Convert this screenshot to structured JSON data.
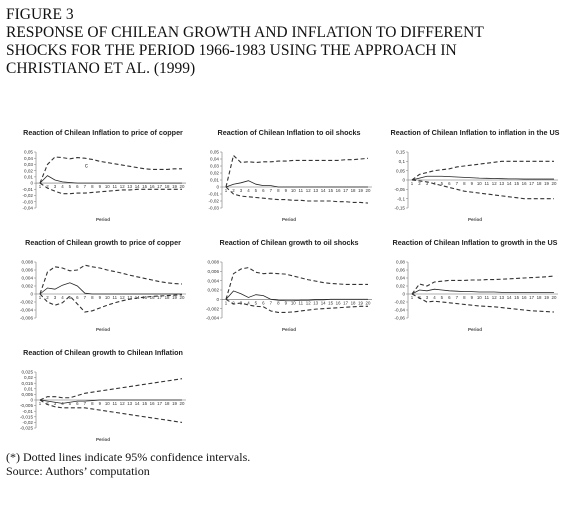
{
  "figure": {
    "title_lines": [
      "FIGURE 3",
      "RESPONSE OF CHILEAN GROWTH AND INFLATION TO DIFFERENT",
      "SHOCKS FOR THE PERIOD 1966-1983 USING THE APPROACH IN",
      "CHRISTIANO ET AL. (1999)"
    ],
    "note": "(*) Dotted lines indicate 95% confidence intervals.",
    "source": "Source: Authors’ computation"
  },
  "chart_data": [
    {
      "type": "line",
      "title": "Reaction of Chilean Inflation to price of copper",
      "xlabel": "Period",
      "x": [
        1,
        2,
        3,
        4,
        5,
        6,
        7,
        8,
        9,
        10,
        11,
        12,
        13,
        14,
        15,
        16,
        17,
        18,
        19,
        20
      ],
      "yticks": [
        "0,05",
        "0,04",
        "0,03",
        "0,02",
        "0,01",
        "0",
        "-0,01",
        "-0,02",
        "-0,03",
        "-0,04"
      ],
      "ylim": [
        -0.04,
        0.05
      ],
      "annotation": "c",
      "series": [
        {
          "role": "response",
          "values": [
            0.0,
            0.012,
            0.005,
            0.002,
            0.001,
            0.0,
            0.0,
            0.0,
            0.0,
            0.0,
            0.0,
            0.0,
            0.0,
            0.0,
            0.0,
            0.0,
            0.0,
            0.0,
            0.0,
            0.0
          ]
        },
        {
          "role": "upper",
          "values": [
            0.0,
            0.03,
            0.042,
            0.041,
            0.039,
            0.041,
            0.04,
            0.038,
            0.035,
            0.033,
            0.031,
            0.029,
            0.027,
            0.025,
            0.023,
            0.022,
            0.022,
            0.022,
            0.023,
            0.023
          ]
        },
        {
          "role": "lower",
          "values": [
            0.0,
            -0.008,
            -0.013,
            -0.017,
            -0.017,
            -0.016,
            -0.016,
            -0.015,
            -0.014,
            -0.013,
            -0.012,
            -0.011,
            -0.011,
            -0.01,
            -0.01,
            -0.01,
            -0.01,
            -0.01,
            -0.01,
            -0.01
          ]
        }
      ]
    },
    {
      "type": "line",
      "title": "Reaction of Chilean Inflation to oil shocks",
      "xlabel": "Period",
      "x": [
        1,
        2,
        3,
        4,
        5,
        6,
        7,
        8,
        9,
        10,
        11,
        12,
        13,
        14,
        15,
        16,
        17,
        18,
        19,
        20
      ],
      "yticks": [
        "0,05",
        "0,04",
        "0,03",
        "0,02",
        "0,01",
        "0",
        "-0,01",
        "-0,02",
        "-0,03"
      ],
      "ylim": [
        -0.03,
        0.05
      ],
      "series": [
        {
          "role": "response",
          "values": [
            0.0,
            0.004,
            0.006,
            0.009,
            0.004,
            0.002,
            0.002,
            0.0,
            0.0,
            0.0,
            0.0,
            0.0,
            0.0,
            0.0,
            0.0,
            0.0,
            0.0,
            0.0,
            0.0,
            0.0
          ]
        },
        {
          "role": "upper",
          "values": [
            0.0,
            0.045,
            0.035,
            0.036,
            0.035,
            0.036,
            0.036,
            0.037,
            0.037,
            0.038,
            0.038,
            0.038,
            0.038,
            0.038,
            0.038,
            0.038,
            0.039,
            0.039,
            0.04,
            0.041
          ]
        },
        {
          "role": "lower",
          "values": [
            0.0,
            -0.01,
            -0.013,
            -0.014,
            -0.015,
            -0.016,
            -0.017,
            -0.018,
            -0.018,
            -0.019,
            -0.019,
            -0.02,
            -0.02,
            -0.02,
            -0.02,
            -0.021,
            -0.021,
            -0.022,
            -0.022,
            -0.023
          ]
        }
      ]
    },
    {
      "type": "line",
      "title": "Reaction of Chilean Inflation to inflation in the US",
      "xlabel": "Period",
      "x": [
        1,
        2,
        3,
        4,
        5,
        6,
        7,
        8,
        9,
        10,
        11,
        12,
        13,
        14,
        15,
        16,
        17,
        18,
        19,
        20
      ],
      "yticks": [
        "0,15",
        "0,1",
        "0,05",
        "0",
        "-0,05",
        "-0,1",
        "-0,15"
      ],
      "ylim": [
        -0.15,
        0.15
      ],
      "series": [
        {
          "role": "response",
          "values": [
            0.0,
            0.01,
            0.02,
            0.02,
            0.02,
            0.018,
            0.016,
            0.014,
            0.012,
            0.01,
            0.009,
            0.008,
            0.007,
            0.006,
            0.006,
            0.005,
            0.005,
            0.005,
            0.005,
            0.005
          ]
        },
        {
          "role": "upper",
          "values": [
            0.0,
            0.03,
            0.04,
            0.05,
            0.055,
            0.06,
            0.07,
            0.075,
            0.08,
            0.085,
            0.09,
            0.095,
            0.1,
            0.1,
            0.1,
            0.1,
            0.1,
            0.1,
            0.1,
            0.1
          ]
        },
        {
          "role": "lower",
          "values": [
            0.0,
            -0.005,
            -0.01,
            -0.02,
            -0.03,
            -0.04,
            -0.05,
            -0.06,
            -0.065,
            -0.07,
            -0.075,
            -0.08,
            -0.085,
            -0.09,
            -0.095,
            -0.1,
            -0.1,
            -0.1,
            -0.1,
            -0.1
          ]
        }
      ]
    },
    {
      "type": "line",
      "title": "Reaction of Chilean growth to price of copper",
      "xlabel": "Period",
      "x": [
        1,
        2,
        3,
        4,
        5,
        6,
        7,
        8,
        9,
        10,
        11,
        12,
        13,
        14,
        15,
        16,
        17,
        18,
        19,
        20
      ],
      "yticks": [
        "0,008",
        "0,006",
        "0,004",
        "0,002",
        "0",
        "-0,002",
        "-0,004",
        "-0,006"
      ],
      "ylim": [
        -0.006,
        0.008
      ],
      "series": [
        {
          "role": "response",
          "values": [
            0.0,
            0.0015,
            0.0012,
            0.0022,
            0.0028,
            0.002,
            0.0002,
            0.0,
            0.0,
            0.0,
            0.0,
            0.0,
            0.0,
            0.0,
            0.0,
            0.0,
            0.0,
            0.0,
            0.0,
            0.0
          ]
        },
        {
          "role": "upper",
          "values": [
            0.0,
            0.0055,
            0.0068,
            0.0065,
            0.0058,
            0.006,
            0.0072,
            0.0068,
            0.0065,
            0.006,
            0.0056,
            0.0052,
            0.0047,
            0.0043,
            0.0039,
            0.0035,
            0.0031,
            0.0028,
            0.0026,
            0.0025
          ]
        },
        {
          "role": "lower",
          "values": [
            0.0,
            -0.002,
            -0.0028,
            -0.0022,
            -0.0005,
            -0.0025,
            -0.0045,
            -0.0042,
            -0.0035,
            -0.0028,
            -0.0022,
            -0.0017,
            -0.0013,
            -0.001,
            -0.0008,
            -0.0006,
            -0.0005,
            -0.0004,
            -0.0003,
            -0.0002
          ]
        }
      ]
    },
    {
      "type": "line",
      "title": "Reaction of Chilean growth to oil shocks",
      "xlabel": "Period",
      "x": [
        1,
        2,
        3,
        4,
        5,
        6,
        7,
        8,
        9,
        10,
        11,
        12,
        13,
        14,
        15,
        16,
        17,
        18,
        19,
        20
      ],
      "yticks": [
        "0,008",
        "0,006",
        "0,004",
        "0,002",
        "0",
        "-0,002",
        "-0,004"
      ],
      "ylim": [
        -0.004,
        0.008
      ],
      "series": [
        {
          "role": "response",
          "values": [
            0.0,
            0.0018,
            0.0012,
            0.0004,
            0.001,
            0.0008,
            0.0,
            -0.0002,
            -0.0003,
            -0.0003,
            -0.0002,
            -0.0002,
            -0.0001,
            -0.0001,
            0.0,
            0.0,
            0.0,
            0.0,
            0.0,
            0.0
          ]
        },
        {
          "role": "upper",
          "values": [
            0.0,
            0.0055,
            0.0065,
            0.0068,
            0.0058,
            0.0055,
            0.0056,
            0.0055,
            0.0054,
            0.005,
            0.0046,
            0.0042,
            0.0039,
            0.0036,
            0.0034,
            0.0033,
            0.0032,
            0.0032,
            0.0032,
            0.0032
          ]
        },
        {
          "role": "lower",
          "values": [
            0.0,
            -0.001,
            -0.0008,
            -0.0012,
            -0.0015,
            -0.0016,
            -0.0025,
            -0.0028,
            -0.0028,
            -0.0027,
            -0.0025,
            -0.0023,
            -0.0021,
            -0.002,
            -0.0019,
            -0.0018,
            -0.0017,
            -0.0016,
            -0.0015,
            -0.0015
          ]
        }
      ]
    },
    {
      "type": "line",
      "title": "Reaction of Chilean Inflation to growth in the US",
      "xlabel": "Period",
      "x": [
        1,
        2,
        3,
        4,
        5,
        6,
        7,
        8,
        9,
        10,
        11,
        12,
        13,
        14,
        15,
        16,
        17,
        18,
        19,
        20
      ],
      "yticks": [
        "0,08",
        "0,06",
        "0,04",
        "0,02",
        "0",
        "-0,02",
        "-0,04",
        "-0,06"
      ],
      "ylim": [
        -0.06,
        0.08
      ],
      "series": [
        {
          "role": "response",
          "values": [
            0.0,
            0.01,
            0.008,
            0.012,
            0.01,
            0.008,
            0.007,
            0.006,
            0.006,
            0.005,
            0.005,
            0.005,
            0.004,
            0.004,
            0.004,
            0.004,
            0.004,
            0.004,
            0.004,
            0.004
          ]
        },
        {
          "role": "upper",
          "values": [
            0.0,
            0.025,
            0.02,
            0.03,
            0.032,
            0.034,
            0.034,
            0.034,
            0.035,
            0.035,
            0.036,
            0.036,
            0.037,
            0.038,
            0.039,
            0.04,
            0.041,
            0.042,
            0.043,
            0.045
          ]
        },
        {
          "role": "lower",
          "values": [
            0.0,
            -0.01,
            -0.02,
            -0.018,
            -0.02,
            -0.022,
            -0.024,
            -0.026,
            -0.028,
            -0.03,
            -0.031,
            -0.032,
            -0.034,
            -0.036,
            -0.038,
            -0.04,
            -0.042,
            -0.043,
            -0.044,
            -0.045
          ]
        }
      ]
    },
    {
      "type": "line",
      "title": "Reaction of Chilean growth to Chilean Inflation",
      "xlabel": "Period",
      "x": [
        1,
        2,
        3,
        4,
        5,
        6,
        7,
        8,
        9,
        10,
        11,
        12,
        13,
        14,
        15,
        16,
        17,
        18,
        19,
        20
      ],
      "yticks": [
        "0,025",
        "0,02",
        "0,015",
        "0,01",
        "0,005",
        "0",
        "-0,005",
        "-0,01",
        "-0,015",
        "-0,02",
        "-0,025"
      ],
      "ylim": [
        -0.025,
        0.025
      ],
      "series": [
        {
          "role": "response",
          "values": [
            0.0,
            -0.001,
            -0.002,
            -0.003,
            -0.002,
            -0.001,
            -0.001,
            -0.0005,
            0.0,
            0.0,
            0.0,
            0.0,
            0.0,
            0.0,
            0.0,
            0.0,
            0.0,
            0.0,
            0.0,
            0.0
          ]
        },
        {
          "role": "upper",
          "values": [
            0.0,
            0.003,
            0.003,
            0.002,
            0.002,
            0.004,
            0.006,
            0.007,
            0.008,
            0.009,
            0.01,
            0.011,
            0.012,
            0.013,
            0.014,
            0.015,
            0.016,
            0.017,
            0.018,
            0.019
          ]
        },
        {
          "role": "lower",
          "values": [
            0.0,
            -0.004,
            -0.006,
            -0.007,
            -0.007,
            -0.007,
            -0.007,
            -0.008,
            -0.009,
            -0.01,
            -0.011,
            -0.012,
            -0.013,
            -0.014,
            -0.015,
            -0.016,
            -0.017,
            -0.018,
            -0.019,
            -0.02
          ]
        }
      ]
    }
  ]
}
